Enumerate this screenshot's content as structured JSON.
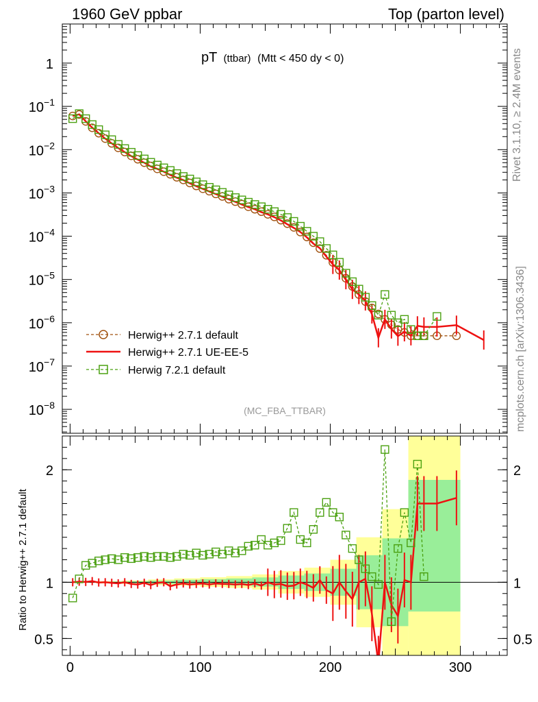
{
  "header": {
    "left": "1960 GeV ppbar",
    "right": "Top (parton level)"
  },
  "side": {
    "rivet": "Rivet 3.1.10, ≥ 2.4M events",
    "mcplots": "mcplots.cern.ch [arXiv:1306.3436]"
  },
  "chart_data": {
    "type": "line",
    "title_main": "pT",
    "title_sub": "(ttbar)",
    "title_cut": "(Mtt < 450 dy < 0)",
    "analysis": "(MC_FBA_TTBAR)",
    "xlim": [
      -6,
      336
    ],
    "ylim_top": [
      2.8e-09,
      8
    ],
    "ylim_ratio": [
      0.35,
      2.3
    ],
    "ylabel_ratio": "Ratio to Herwig++ 2.7.1 default",
    "top_yticks": [
      {
        "label": "1",
        "value": 1
      },
      {
        "label": "10",
        "exp": "−1",
        "value": 0.1
      },
      {
        "label": "10",
        "exp": "−2",
        "value": 0.01
      },
      {
        "label": "10",
        "exp": "−3",
        "value": 0.001
      },
      {
        "label": "10",
        "exp": "−4",
        "value": 0.0001
      },
      {
        "label": "10",
        "exp": "−5",
        "value": 1e-05
      },
      {
        "label": "10",
        "exp": "−6",
        "value": 1e-06
      },
      {
        "label": "10",
        "exp": "−7",
        "value": 1e-07
      },
      {
        "label": "10",
        "exp": "−8",
        "value": 1e-08
      }
    ],
    "ratio_yticks": [
      {
        "label": "0.5",
        "value": 0.5
      },
      {
        "label": "1",
        "value": 1
      },
      {
        "label": "2",
        "value": 2
      }
    ],
    "xticks": [
      {
        "label": "0",
        "value": 0
      },
      {
        "label": "100",
        "value": 100
      },
      {
        "label": "200",
        "value": 200
      },
      {
        "label": "300",
        "value": 300
      }
    ],
    "series": [
      {
        "name": "Herwig++ 2.7.1 default",
        "color": "#a0520f",
        "style": "dashed",
        "marker": "circle",
        "x": [
          2,
          7,
          12,
          17,
          22,
          27,
          32,
          37,
          42,
          47,
          52,
          57,
          62,
          67,
          72,
          77,
          82,
          87,
          92,
          97,
          102,
          107,
          112,
          117,
          122,
          127,
          132,
          137,
          142,
          147,
          152,
          157,
          162,
          167,
          172,
          177,
          182,
          187,
          192,
          197,
          202,
          207,
          212,
          217,
          222,
          227,
          232,
          237,
          242,
          247,
          252,
          257,
          262,
          267,
          272,
          282,
          297
        ],
        "y": [
          0.06,
          0.065,
          0.045,
          0.032,
          0.024,
          0.018,
          0.014,
          0.011,
          0.0088,
          0.0072,
          0.006,
          0.005,
          0.0042,
          0.0036,
          0.0031,
          0.0027,
          0.0023,
          0.002,
          0.0017,
          0.00145,
          0.00125,
          0.0011,
          0.00095,
          0.00083,
          0.00072,
          0.00063,
          0.00055,
          0.00048,
          0.00042,
          0.00037,
          0.00032,
          0.00028,
          0.000235,
          0.000195,
          0.00016,
          0.000125,
          9.62e-05,
          7.08e-05,
          5.18e-05,
          3.63e-05,
          2.48e-05,
          1.65e-05,
          1.07e-05,
          6.9e-06,
          4.5e-06,
          3.1e-06,
          2.2e-06,
          1.6e-06,
          1.2e-06,
          9e-07,
          7e-07,
          6e-07,
          5e-07,
          5e-07,
          5e-07,
          5e-07,
          5e-07
        ]
      },
      {
        "name": "Herwig++ 2.7.1 UE-EE-5",
        "color": "#ee1111",
        "style": "solid",
        "marker": "none",
        "x": [
          2,
          7,
          12,
          17,
          22,
          27,
          32,
          37,
          42,
          47,
          52,
          57,
          62,
          67,
          72,
          77,
          82,
          87,
          92,
          97,
          102,
          107,
          112,
          117,
          122,
          127,
          132,
          137,
          142,
          147,
          152,
          157,
          162,
          167,
          172,
          177,
          182,
          187,
          192,
          197,
          202,
          207,
          212,
          217,
          222,
          227,
          232,
          237,
          242,
          247,
          252,
          257,
          262,
          267,
          272,
          282,
          297,
          318
        ],
        "y": [
          0.06,
          0.0653,
          0.0452,
          0.0323,
          0.024,
          0.018,
          0.014,
          0.0109,
          0.0088,
          0.0071,
          0.0059,
          0.005,
          0.0041,
          0.0036,
          0.0031,
          0.0026,
          0.00225,
          0.00198,
          0.00167,
          0.00143,
          0.00124,
          0.00108,
          0.00094,
          0.00082,
          0.00071,
          0.00062,
          0.00054,
          0.00047,
          0.00042,
          0.00036,
          0.00032,
          0.000275,
          0.000232,
          0.000188,
          0.000155,
          0.000125,
          9.43e-05,
          6.73e-05,
          5.28e-05,
          3.38e-05,
          2.23e-05,
          1.65e-05,
          9.9e-06,
          5.9e-06,
          4.5e-06,
          3.2e-06,
          1.6e-06,
          4.5e-07,
          1.2e-06,
          7.2e-07,
          4.9e-07,
          6.2e-07,
          5e-07,
          8.5e-07,
          8e-07,
          8e-07,
          8.8e-07,
          4e-07
        ]
      },
      {
        "name": "Herwig 7.2.1 default",
        "color": "#4aa010",
        "style": "dashed",
        "marker": "square",
        "x": [
          2,
          7,
          12,
          17,
          22,
          27,
          32,
          37,
          42,
          47,
          52,
          57,
          62,
          67,
          72,
          77,
          82,
          87,
          92,
          97,
          102,
          107,
          112,
          117,
          122,
          127,
          132,
          137,
          142,
          147,
          152,
          157,
          162,
          167,
          172,
          177,
          182,
          187,
          192,
          197,
          202,
          207,
          212,
          217,
          222,
          227,
          232,
          237,
          242,
          247,
          252,
          257,
          262,
          267,
          272,
          282
        ],
        "y": [
          0.052,
          0.068,
          0.052,
          0.038,
          0.029,
          0.022,
          0.017,
          0.0132,
          0.0106,
          0.0087,
          0.0073,
          0.0061,
          0.0051,
          0.0044,
          0.0038,
          0.0033,
          0.0028,
          0.0024,
          0.0021,
          0.0018,
          0.00155,
          0.00135,
          0.00118,
          0.00103,
          0.0009,
          0.00078,
          0.00069,
          0.00061,
          0.00054,
          0.00048,
          0.00042,
          0.00037,
          0.00032,
          0.00027,
          0.00022,
          0.00017,
          0.00013,
          0.0001,
          7.5e-05,
          5.2e-05,
          3.7e-05,
          2.5e-05,
          1.4e-05,
          8.9e-06,
          6e-06,
          3.9e-06,
          2.5e-06,
          1.5e-06,
          4.5e-06,
          1.5e-06,
          1e-06,
          1.2e-06,
          7e-07,
          5e-07,
          5e-07,
          1.4e-06
        ]
      }
    ],
    "ratio_series": [
      {
        "name": "Herwig++ 2.7.1 UE-EE-5",
        "x": [
          2,
          7,
          12,
          17,
          22,
          27,
          32,
          37,
          42,
          47,
          52,
          57,
          62,
          67,
          72,
          77,
          82,
          87,
          92,
          97,
          102,
          107,
          112,
          117,
          122,
          127,
          132,
          137,
          142,
          147,
          152,
          157,
          162,
          167,
          172,
          177,
          182,
          187,
          192,
          197,
          202,
          207,
          212,
          217,
          222,
          227,
          232,
          237,
          242,
          247,
          252,
          257,
          262,
          267,
          272,
          282,
          297
        ],
        "y": [
          1.0,
          1.005,
          1.003,
          1.01,
          0.998,
          1.0,
          0.995,
          0.99,
          1.0,
          0.985,
          0.98,
          0.995,
          0.975,
          0.995,
          1.0,
          0.965,
          0.98,
          0.99,
          0.98,
          0.985,
          0.99,
          0.98,
          0.99,
          0.985,
          0.985,
          0.98,
          0.985,
          0.975,
          0.99,
          0.97,
          1.0,
          0.98,
          0.985,
          0.965,
          0.97,
          1.0,
          0.98,
          0.95,
          1.02,
          0.93,
          0.9,
          1.0,
          0.92,
          0.85,
          1.0,
          1.03,
          0.72,
          0.28,
          1.0,
          0.8,
          0.7,
          1.02,
          1.0,
          1.7,
          1.7,
          1.7,
          1.75
        ]
      },
      {
        "name": "Herwig 7.2.1 default",
        "x": [
          2,
          7,
          12,
          17,
          22,
          27,
          32,
          37,
          42,
          47,
          52,
          57,
          62,
          67,
          72,
          77,
          82,
          87,
          92,
          97,
          102,
          107,
          112,
          117,
          122,
          127,
          132,
          137,
          142,
          147,
          152,
          157,
          162,
          167,
          172,
          177,
          182,
          187,
          192,
          197,
          202,
          207,
          212,
          217,
          222,
          227,
          232,
          237,
          242,
          247,
          252,
          257,
          262,
          267,
          272
        ],
        "y": [
          0.86,
          1.03,
          1.15,
          1.17,
          1.19,
          1.2,
          1.21,
          1.2,
          1.22,
          1.21,
          1.22,
          1.23,
          1.22,
          1.23,
          1.23,
          1.22,
          1.23,
          1.25,
          1.24,
          1.26,
          1.24,
          1.25,
          1.27,
          1.25,
          1.28,
          1.26,
          1.28,
          1.32,
          1.33,
          1.38,
          1.33,
          1.35,
          1.37,
          1.48,
          1.62,
          1.38,
          1.35,
          1.47,
          1.62,
          1.71,
          1.62,
          1.58,
          1.42,
          1.3,
          1.2,
          1.12,
          1.05,
          0.98,
          2.18,
          0.65,
          1.3,
          1.62,
          1.35,
          2.05,
          1.05
        ]
      }
    ],
    "bands": [
      {
        "x0": 0,
        "x1": 20,
        "lo": 0.995,
        "hi": 1.005
      },
      {
        "x0": 20,
        "x1": 40,
        "lo": 0.99,
        "hi": 1.01
      },
      {
        "x0": 40,
        "x1": 60,
        "lo": 0.985,
        "hi": 1.015
      },
      {
        "x0": 60,
        "x1": 80,
        "lo": 0.975,
        "hi": 1.025
      },
      {
        "x0": 80,
        "x1": 100,
        "lo": 0.97,
        "hi": 1.035
      },
      {
        "x0": 100,
        "x1": 120,
        "lo": 0.96,
        "hi": 1.045
      },
      {
        "x0": 120,
        "x1": 140,
        "lo": 0.95,
        "hi": 1.055
      },
      {
        "x0": 140,
        "x1": 160,
        "lo": 0.935,
        "hi": 1.07
      },
      {
        "x0": 160,
        "x1": 180,
        "lo": 0.9,
        "hi": 1.1
      },
      {
        "x0": 180,
        "x1": 200,
        "lo": 0.87,
        "hi": 1.13
      },
      {
        "x0": 200,
        "x1": 220,
        "lo": 0.8,
        "hi": 1.2
      },
      {
        "x0": 220,
        "x1": 240,
        "lo": 0.6,
        "hi": 1.4
      },
      {
        "x0": 240,
        "x1": 260,
        "lo": 0.35,
        "hi": 1.65
      },
      {
        "x0": 260,
        "x1": 300,
        "lo": 0.35,
        "hi": 2.3
      }
    ]
  }
}
